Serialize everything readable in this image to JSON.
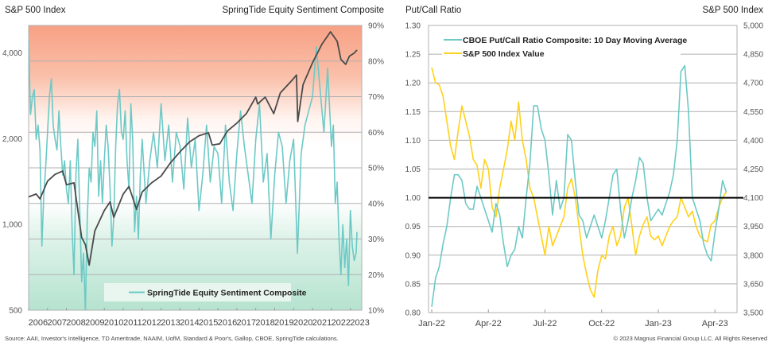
{
  "footer": {
    "source": "Source: AAII, Investor's Intelligence, TD Ameritrade, NAAIM, UofM, Standard & Poor's, Gallop, CBOE, SpringTide calculations.",
    "copyright": "© 2023 Magnus Financial Group LLC. All Rights Reserved"
  },
  "colors": {
    "sentiment_line": "#6cc9c6",
    "sp500_dark_line": "#4a4a4a",
    "putcall_line": "#6cc9c6",
    "sp500_gold_line": "#ffd11a",
    "bg_top": "#f7a084",
    "bg_mid": "#ffffff",
    "bg_bottom": "#b5e3cf",
    "grid": "#b0b0b0",
    "reference_line": "#000000"
  },
  "chart_data": [
    {
      "type": "line",
      "title_left": "S&P 500 Index",
      "title_right": "SpringTide Equity Sentiment Composite",
      "xlabel": "",
      "x_ticks": [
        "2006",
        "2007",
        "2008",
        "2009",
        "2010",
        "2011",
        "2012",
        "2013",
        "2014",
        "2015",
        "2016",
        "2017",
        "2018",
        "2019",
        "2020",
        "2021",
        "2022",
        "2023"
      ],
      "xlim": [
        2006.0,
        2023.6
      ],
      "y_left": {
        "label": "S&P 500 Index",
        "scale": "log",
        "range": [
          500,
          5000
        ],
        "ticks": [
          500,
          1000,
          2000,
          4000
        ],
        "tick_labels": [
          "500",
          "1,000",
          "2,000",
          "4,000"
        ]
      },
      "y_right": {
        "label": "SpringTide Equity Sentiment Composite",
        "range": [
          10,
          90
        ],
        "ticks": [
          10,
          20,
          30,
          40,
          50,
          60,
          70,
          80,
          90
        ],
        "tick_labels": [
          "10%",
          "20%",
          "30%",
          "40%",
          "50%",
          "60%",
          "70%",
          "80%",
          "90%"
        ]
      },
      "grid": true,
      "background": "gradient: red (top, bullish/high sentiment) to white (middle) to green (bottom, bearish/low sentiment)",
      "legend": {
        "position": "bottom-center",
        "entries": [
          "SpringTide Equity Sentiment Composite"
        ]
      },
      "series": [
        {
          "name": "S&P 500 Index",
          "axis": "left",
          "color": "#4a4a4a",
          "x": [
            2006.0,
            2006.4,
            2006.6,
            2007.0,
            2007.4,
            2007.8,
            2008.0,
            2008.4,
            2008.8,
            2009.0,
            2009.2,
            2009.5,
            2010.0,
            2010.3,
            2010.5,
            2011.0,
            2011.3,
            2011.7,
            2012.0,
            2012.5,
            2013.0,
            2013.5,
            2014.0,
            2014.5,
            2015.0,
            2015.5,
            2015.7,
            2016.1,
            2016.5,
            2017.0,
            2017.5,
            2018.0,
            2018.1,
            2018.5,
            2018.95,
            2019.3,
            2019.9,
            2020.15,
            2020.22,
            2020.5,
            2021.0,
            2021.5,
            2021.95,
            2022.3,
            2022.5,
            2022.75,
            2022.95,
            2023.2,
            2023.35
          ],
          "values": [
            1250,
            1280,
            1230,
            1420,
            1500,
            1540,
            1380,
            1400,
            900,
            850,
            720,
            950,
            1120,
            1200,
            1060,
            1280,
            1360,
            1130,
            1300,
            1400,
            1480,
            1650,
            1800,
            1950,
            2050,
            2100,
            1900,
            1920,
            2130,
            2270,
            2450,
            2800,
            2650,
            2800,
            2450,
            2900,
            3200,
            3350,
            2300,
            3100,
            3700,
            4300,
            4750,
            4400,
            3800,
            3650,
            3900,
            4000,
            4100
          ]
        },
        {
          "name": "SpringTide Equity Sentiment Composite",
          "axis": "right",
          "color": "#6cc9c6",
          "x": [
            2006.0,
            2006.05,
            2006.1,
            2006.2,
            2006.3,
            2006.4,
            2006.5,
            2006.6,
            2006.7,
            2006.8,
            2006.9,
            2007.0,
            2007.1,
            2007.2,
            2007.3,
            2007.4,
            2007.5,
            2007.6,
            2007.7,
            2007.8,
            2007.9,
            2008.0,
            2008.1,
            2008.2,
            2008.3,
            2008.4,
            2008.5,
            2008.6,
            2008.7,
            2008.8,
            2008.9,
            2009.0,
            2009.1,
            2009.2,
            2009.3,
            2009.4,
            2009.5,
            2009.6,
            2009.7,
            2009.8,
            2009.9,
            2010.0,
            2010.1,
            2010.2,
            2010.3,
            2010.4,
            2010.5,
            2010.6,
            2010.7,
            2010.8,
            2010.9,
            2011.0,
            2011.1,
            2011.2,
            2011.3,
            2011.4,
            2011.5,
            2011.6,
            2011.7,
            2011.8,
            2011.9,
            2012.0,
            2012.2,
            2012.4,
            2012.6,
            2012.8,
            2013.0,
            2013.2,
            2013.4,
            2013.6,
            2013.8,
            2014.0,
            2014.2,
            2014.4,
            2014.6,
            2014.8,
            2015.0,
            2015.2,
            2015.4,
            2015.6,
            2015.8,
            2016.0,
            2016.2,
            2016.4,
            2016.6,
            2016.8,
            2017.0,
            2017.2,
            2017.4,
            2017.6,
            2017.8,
            2018.0,
            2018.2,
            2018.4,
            2018.6,
            2018.8,
            2019.0,
            2019.2,
            2019.4,
            2019.6,
            2019.8,
            2020.0,
            2020.2,
            2020.4,
            2020.6,
            2020.8,
            2021.0,
            2021.2,
            2021.4,
            2021.6,
            2021.8,
            2022.0,
            2022.1,
            2022.2,
            2022.3,
            2022.4,
            2022.5,
            2022.6,
            2022.7,
            2022.8,
            2022.9,
            2023.0,
            2023.1,
            2023.2,
            2023.3,
            2023.35
          ],
          "values": [
            86,
            75,
            65,
            70,
            72,
            58,
            62,
            55,
            28,
            42,
            50,
            60,
            70,
            75,
            62,
            58,
            55,
            66,
            56,
            48,
            52,
            44,
            40,
            52,
            32,
            20,
            48,
            58,
            38,
            18,
            26,
            10,
            36,
            50,
            46,
            60,
            56,
            66,
            42,
            52,
            40,
            52,
            62,
            56,
            44,
            28,
            36,
            56,
            68,
            72,
            60,
            58,
            66,
            52,
            44,
            68,
            58,
            32,
            42,
            30,
            48,
            58,
            40,
            52,
            60,
            50,
            68,
            52,
            62,
            46,
            60,
            56,
            44,
            64,
            50,
            58,
            38,
            48,
            62,
            46,
            56,
            54,
            40,
            62,
            46,
            38,
            54,
            66,
            56,
            48,
            40,
            58,
            68,
            46,
            54,
            30,
            48,
            60,
            56,
            40,
            52,
            58,
            26,
            54,
            62,
            66,
            70,
            84,
            72,
            60,
            78,
            56,
            62,
            40,
            46,
            30,
            20,
            34,
            22,
            30,
            17,
            38,
            28,
            24,
            26,
            32
          ]
        }
      ]
    },
    {
      "type": "line",
      "title_left": "Put/Call Ratio",
      "title_right": "S&P 500 Index",
      "xlabel": "",
      "x_ticks": [
        "Jan-22",
        "Apr-22",
        "Jul-22",
        "Oct-22",
        "Jan-23",
        "Apr-23"
      ],
      "xlim_months_since_jan22": [
        0,
        16.0
      ],
      "y_left": {
        "label": "Put/Call Ratio",
        "range": [
          0.8,
          1.3
        ],
        "ticks": [
          0.8,
          0.85,
          0.9,
          0.95,
          1.0,
          1.05,
          1.1,
          1.15,
          1.2,
          1.25,
          1.3
        ],
        "tick_labels": [
          "0.80",
          "0.85",
          "0.90",
          "0.95",
          "1.00",
          "1.05",
          "1.10",
          "1.15",
          "1.20",
          "1.25",
          "1.30"
        ]
      },
      "y_right": {
        "label": "S&P 500 Index",
        "range": [
          3500,
          5000
        ],
        "ticks": [
          3500,
          3650,
          3800,
          3950,
          4100,
          4250,
          4400,
          4550,
          4700,
          4850,
          5000
        ],
        "tick_labels": [
          "3,500",
          "3,650",
          "3,800",
          "3,950",
          "4,100",
          "4,250",
          "4,400",
          "4,550",
          "4,700",
          "4,850",
          "5,000"
        ]
      },
      "reference_line": {
        "axis": "left",
        "value": 1.0
      },
      "grid": true,
      "legend": {
        "position": "top-left",
        "entries": [
          "CBOE Put/Call Ratio Composite: 10 Day Moving Average",
          "S&P 500 Index Value"
        ]
      },
      "series": [
        {
          "name": "CBOE Put/Call Ratio Composite: 10 Day Moving Average",
          "axis": "left",
          "color": "#6cc9c6",
          "x": [
            0,
            0.2,
            0.4,
            0.6,
            0.8,
            1.0,
            1.2,
            1.4,
            1.6,
            1.8,
            2.0,
            2.2,
            2.4,
            2.6,
            2.8,
            3.0,
            3.2,
            3.4,
            3.6,
            3.8,
            4.0,
            4.2,
            4.4,
            4.6,
            4.8,
            5.0,
            5.2,
            5.4,
            5.6,
            5.8,
            6.0,
            6.2,
            6.4,
            6.6,
            6.8,
            7.0,
            7.2,
            7.4,
            7.6,
            7.8,
            8.0,
            8.2,
            8.4,
            8.6,
            8.8,
            9.0,
            9.2,
            9.4,
            9.6,
            9.8,
            10.0,
            10.2,
            10.4,
            10.6,
            10.8,
            11.0,
            11.2,
            11.4,
            11.6,
            11.8,
            12.0,
            12.2,
            12.4,
            12.6,
            12.8,
            13.0,
            13.2,
            13.4,
            13.6,
            13.8,
            14.0,
            14.2,
            14.4,
            14.6,
            14.8,
            15.0,
            15.2,
            15.4,
            15.6
          ],
          "values": [
            0.81,
            0.86,
            0.88,
            0.92,
            0.95,
            1.0,
            1.04,
            1.04,
            1.03,
            0.99,
            0.98,
            0.98,
            1.02,
            1.0,
            0.98,
            0.96,
            0.94,
            0.99,
            0.97,
            0.92,
            0.88,
            0.9,
            0.91,
            0.95,
            0.93,
            1.0,
            1.06,
            1.16,
            1.16,
            1.12,
            1.1,
            1.04,
            0.97,
            1.03,
            0.98,
            1.0,
            1.11,
            1.1,
            1.03,
            0.97,
            0.96,
            0.93,
            0.95,
            0.97,
            0.95,
            0.93,
            0.96,
            1.0,
            1.04,
            1.05,
            0.98,
            0.93,
            0.96,
            1.0,
            1.03,
            1.07,
            1.06,
            1.0,
            0.96,
            0.97,
            0.98,
            0.97,
            0.99,
            1.01,
            1.04,
            1.1,
            1.22,
            1.23,
            1.15,
            1.0,
            0.98,
            0.96,
            0.92,
            0.9,
            0.89,
            0.94,
            0.98,
            1.03,
            1.01
          ]
        },
        {
          "name": "S&P 500 Index Value",
          "axis": "right",
          "color": "#ffd11a",
          "x": [
            0,
            0.2,
            0.4,
            0.6,
            0.8,
            1.0,
            1.2,
            1.4,
            1.6,
            1.8,
            2.0,
            2.2,
            2.4,
            2.6,
            2.8,
            3.0,
            3.2,
            3.4,
            3.6,
            3.8,
            4.0,
            4.2,
            4.4,
            4.6,
            4.8,
            5.0,
            5.2,
            5.4,
            5.6,
            5.8,
            6.0,
            6.2,
            6.4,
            6.6,
            6.8,
            7.0,
            7.2,
            7.4,
            7.6,
            7.8,
            8.0,
            8.2,
            8.4,
            8.6,
            8.8,
            9.0,
            9.2,
            9.4,
            9.6,
            9.8,
            10.0,
            10.2,
            10.4,
            10.6,
            10.8,
            11.0,
            11.2,
            11.4,
            11.6,
            11.8,
            12.0,
            12.2,
            12.4,
            12.6,
            12.8,
            13.0,
            13.2,
            13.4,
            13.6,
            13.8,
            14.0,
            14.2,
            14.4,
            14.6,
            14.8,
            15.0,
            15.2,
            15.4,
            15.6
          ],
          "values": [
            4780,
            4700,
            4690,
            4630,
            4500,
            4370,
            4300,
            4450,
            4580,
            4500,
            4420,
            4300,
            4270,
            4150,
            4300,
            4250,
            4050,
            4000,
            4150,
            4250,
            4350,
            4500,
            4400,
            4600,
            4400,
            4300,
            4150,
            4100,
            4000,
            3900,
            3800,
            3950,
            3850,
            3900,
            3950,
            4000,
            4150,
            4200,
            4100,
            3950,
            3800,
            3700,
            3620,
            3580,
            3720,
            3800,
            3780,
            3900,
            3950,
            3850,
            3900,
            4050,
            4100,
            3950,
            3800,
            3900,
            3960,
            4000,
            3900,
            3880,
            3900,
            3850,
            3900,
            3950,
            3980,
            4000,
            4100,
            4050,
            4000,
            4030,
            3950,
            3900,
            3880,
            3870,
            3960,
            3980,
            4050,
            4100,
            4130
          ]
        }
      ]
    }
  ]
}
